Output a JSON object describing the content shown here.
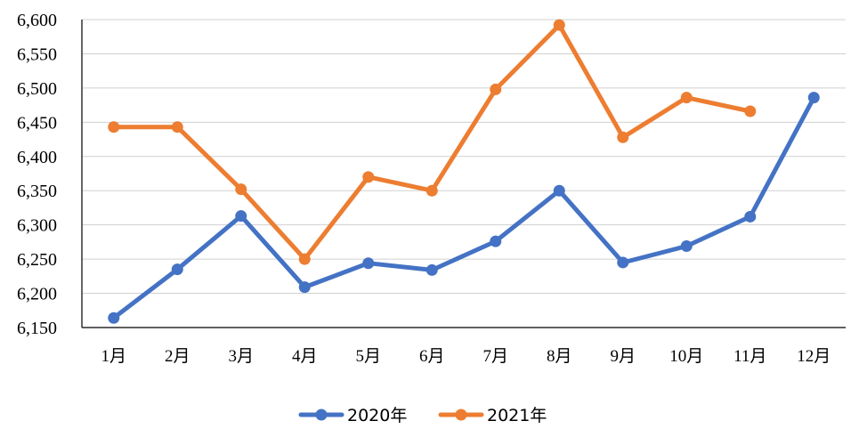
{
  "chart_data": {
    "type": "line",
    "categories": [
      "1月",
      "2月",
      "3月",
      "4月",
      "5月",
      "6月",
      "7月",
      "8月",
      "9月",
      "10月",
      "11月",
      "12月"
    ],
    "series": [
      {
        "name": "2020年",
        "color": "#4472C4",
        "values": [
          6164,
          6235,
          6313,
          6209,
          6244,
          6234,
          6276,
          6350,
          6245,
          6269,
          6312,
          6486
        ]
      },
      {
        "name": "2021年",
        "color": "#ED7D31",
        "values": [
          6443,
          6443,
          6352,
          6250,
          6370,
          6350,
          6498,
          6592,
          6428,
          6486,
          6466,
          null
        ]
      }
    ],
    "title": "",
    "xlabel": "",
    "ylabel": "",
    "ylim": [
      6150,
      6600
    ],
    "yticks": [
      "6,150",
      "6,200",
      "6,250",
      "6,300",
      "6,350",
      "6,400",
      "6,450",
      "6,500",
      "6,550",
      "6,600"
    ],
    "grid": true,
    "legend_position": "bottom"
  }
}
